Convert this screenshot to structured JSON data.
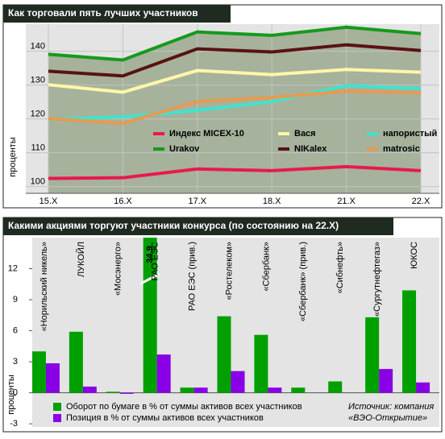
{
  "chart_data": [
    {
      "type": "line",
      "title": "Как торговали пять лучших участников",
      "y_label": "проценты",
      "categories": [
        "15.X",
        "16.X",
        "17.X",
        "18.X",
        "21.X",
        "22.X"
      ],
      "ylim": [
        98,
        148
      ],
      "yticks": [
        100,
        110,
        120,
        130,
        140
      ],
      "grid": true,
      "legend": "center",
      "series": [
        {
          "name": "Индекс MICEX-10",
          "color": "#e8194f",
          "values": [
            102.4,
            102.6,
            105.2,
            104.7,
            105.9,
            104.7
          ]
        },
        {
          "name": "Вася",
          "color": "#fff7a8",
          "values": [
            130.1,
            127.9,
            134.3,
            133.1,
            134.6,
            133.8
          ]
        },
        {
          "name": "напористый",
          "color": "#3fe3cf",
          "values": [
            119.9,
            120.6,
            122.5,
            125.1,
            129.8,
            128.9
          ]
        },
        {
          "name": "Urakov",
          "color": "#169a1c",
          "values": [
            139.1,
            137.4,
            145.7,
            144.7,
            147.1,
            145.2
          ]
        },
        {
          "name": "NIKalex",
          "color": "#5a1212",
          "values": [
            134.1,
            132.7,
            140.7,
            139.8,
            141.9,
            140.2
          ]
        },
        {
          "name": "matrosic",
          "color": "#e89a50",
          "values": [
            120.1,
            118.7,
            125.1,
            126.3,
            128.2,
            127.7
          ]
        }
      ]
    },
    {
      "type": "bar",
      "title": "Какими акциями торгуют участники конкурса (по состоянию на 22.X)",
      "y_label": "проценты",
      "categories": [
        "«Норильский никель»",
        "ЛУКОЙЛ",
        "«Мосэнерго»",
        "РАО ЕЭС",
        "РАО ЕЭС (прив.)",
        "«Ростелеком»",
        "«Сбербанк»",
        "«Сбербанк» (прив.)",
        "«Сибнефть»",
        "«Сургутнефтегаз»",
        "ЮКОС"
      ],
      "ylim": [
        -3.3,
        15
      ],
      "yticks": [
        -3,
        0,
        3,
        6,
        9,
        12
      ],
      "grid": false,
      "legend": "bottom",
      "annotation": "Источник: компания «ВЭО-Открытие»",
      "series": [
        {
          "name": "Оборот по бумаге в % от суммы активов всех участников",
          "color": "#00a000",
          "values": [
            4.0,
            5.9,
            0.1,
            34.9,
            0.5,
            7.4,
            5.6,
            0.5,
            1.1,
            7.3,
            9.9
          ],
          "value_labels": [
            null,
            null,
            null,
            "34,9",
            null,
            null,
            null,
            null,
            null,
            null,
            null
          ]
        },
        {
          "name": "Позиция в % от суммы активов всех участников",
          "color": "#8a00e6",
          "values": [
            2.85,
            0.6,
            -0.1,
            3.7,
            0.5,
            2.1,
            0.5,
            null,
            null,
            2.3,
            1.0
          ]
        }
      ]
    }
  ]
}
